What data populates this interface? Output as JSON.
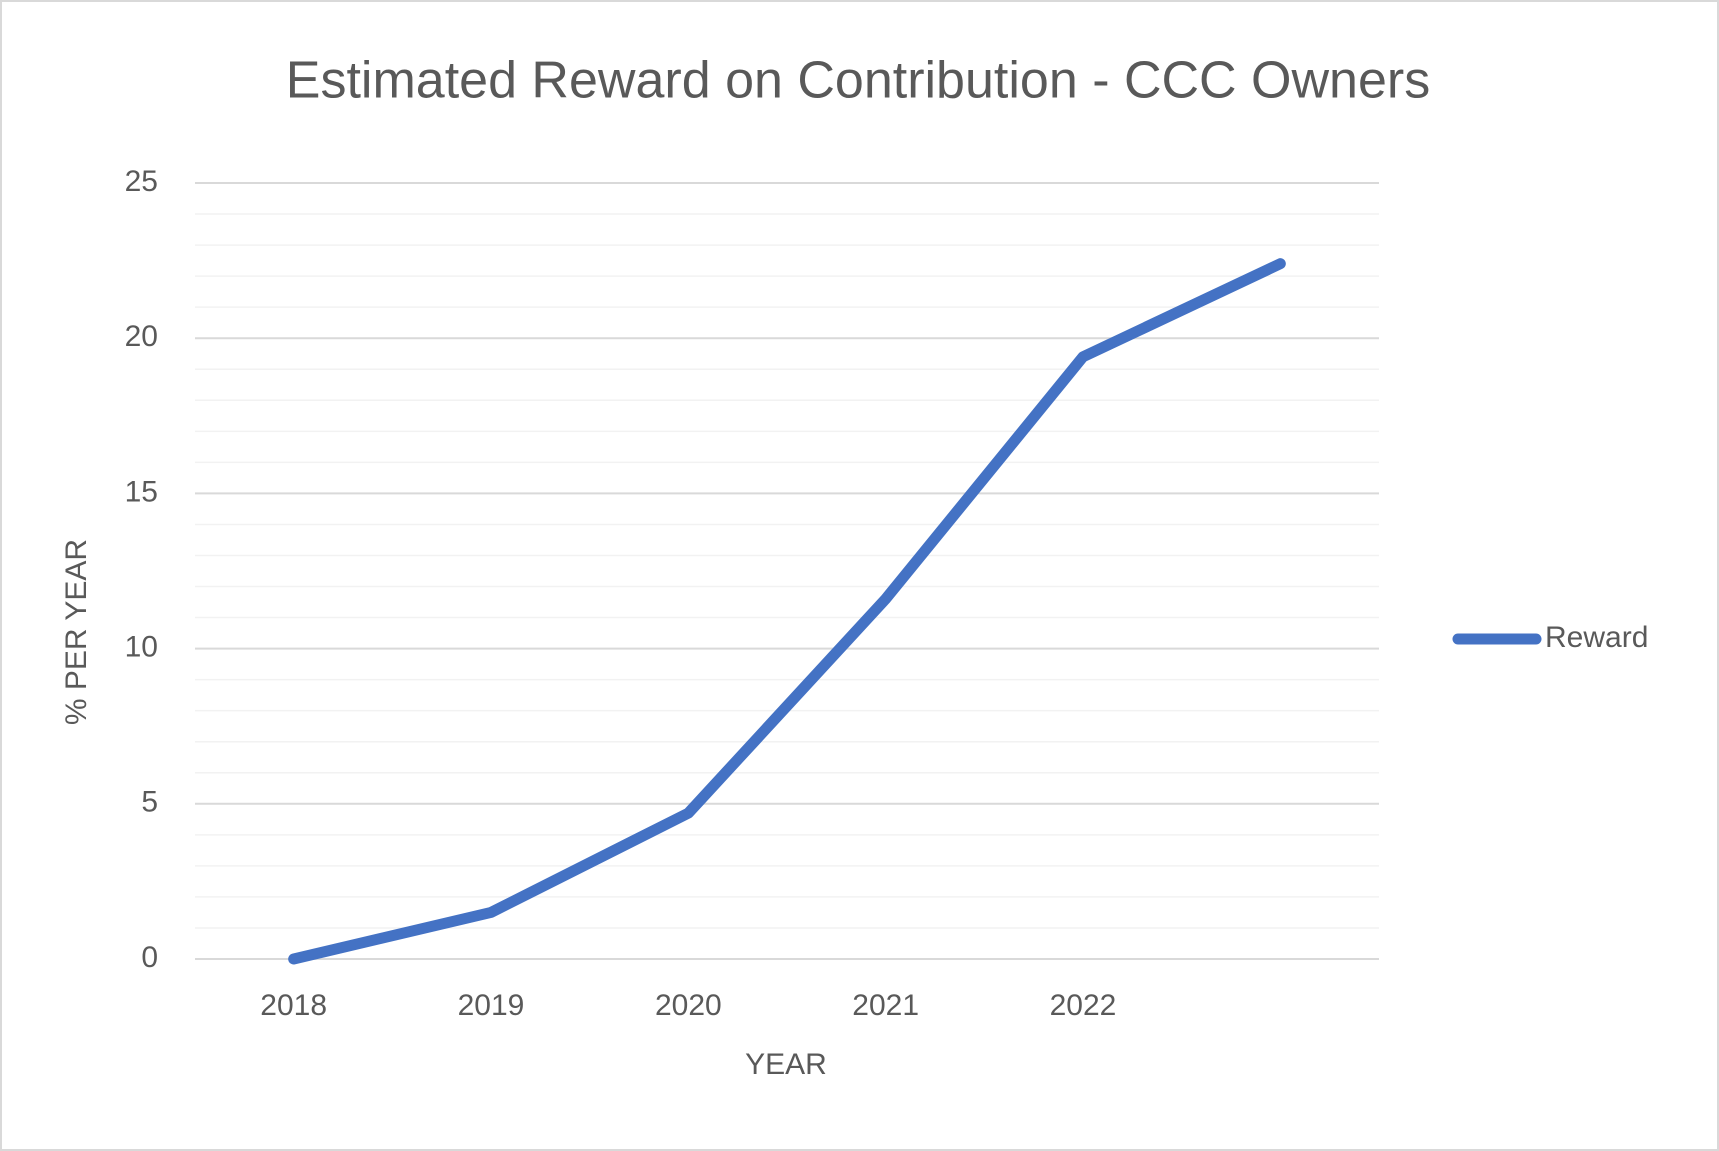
{
  "chart_data": {
    "type": "line",
    "title": "Estimated Reward on Contribution - CCC Owners",
    "xlabel": "YEAR",
    "ylabel": "% PER YEAR",
    "categories": [
      "2018",
      "2019",
      "2020",
      "2021",
      "2022",
      null
    ],
    "series": [
      {
        "name": "Reward",
        "color": "#4472c4",
        "values": [
          0,
          1.5,
          4.7,
          11.6,
          19.4,
          22.4
        ]
      }
    ],
    "ylim": [
      0,
      25
    ],
    "yticks": [
      0,
      5,
      10,
      15,
      20,
      25
    ],
    "minor_yticks": [
      1,
      2,
      3,
      4,
      6,
      7,
      8,
      9,
      11,
      12,
      13,
      14,
      16,
      17,
      18,
      19,
      21,
      22,
      23,
      24
    ],
    "grid": true,
    "legend": "right"
  }
}
